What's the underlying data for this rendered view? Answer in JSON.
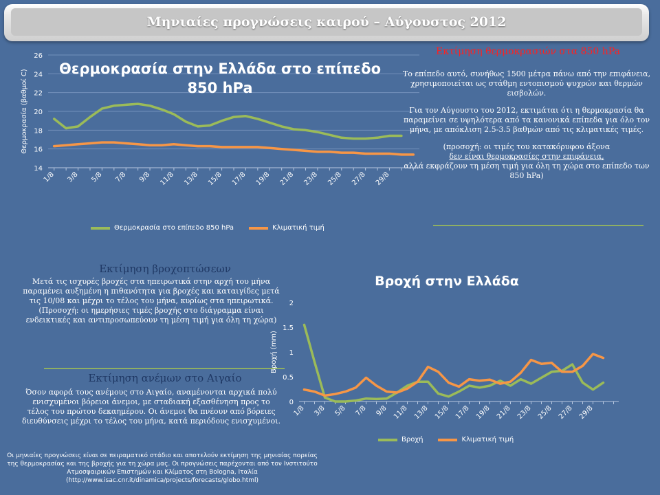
{
  "header": {
    "title": "Μηνιαίες προγνώσεις καιρού – Αύγουστος 2012"
  },
  "temperature_chart": {
    "title_line1": "Θερμοκρασία στην Ελλάδα στο επίπεδο",
    "title_line2": "850 hPa",
    "ylabel": "Θερμοκρασία (βαθμοί C)",
    "legend": [
      "Θερμοκρασία στο επίπεδο 850 hPa",
      "Κλιματική τιμή"
    ],
    "colors": {
      "series1": "#9bbb59",
      "series2": "#f79646"
    }
  },
  "rain_chart": {
    "title": "Βροχή στην Ελλάδα",
    "ylabel": "Βροχή (mm)",
    "legend": [
      "Βροχή",
      "Κλιματική τιμή"
    ]
  },
  "temp_panel": {
    "title": "Εκτίμηση θερμοκρασιών στα 850 hPa",
    "para1": "Το επίπεδο αυτό, συνήθως 1500 μέτρα πάνω από την επιφάνεια, χρησιμοποιείται ως στάθμη εντοπισμού ψυχρών και θερμών εισβολών.",
    "para2": "Για τον Αύγουστο του 2012, εκτιμάται ότι η θερμοκρασία θα παραμείνει σε υψηλότερα από τα κανονικά επίπεδα για όλο τον μήνα, με απόκλιση 2.5-3.5 βαθμών από τις κλιματικές τιμές.",
    "para3_a": "(προσοχή: οι τιμές του κατακόρυφου άξονα",
    "para3_u": "δεν είναι θερμοκρασίες στην επιφάνεια,",
    "para3_b": "αλλά εκφράζουν τη μέση τιμή για όλη τη χώρα στο επίπεδο των 850 hPa)"
  },
  "rain_panel": {
    "title": "Εκτίμηση βροχοπτώσεων",
    "text1": "Μετά τις ισχυρές βροχές στα ηπειρωτικά στην αρχή του μήνα παραμένει αυξημένη η πιθανότητα για βροχές και καταιγίδες μετά τις 10/08 και μέχρι το τέλος του μήνα, κυρίως στα ηπειρωτικά.",
    "text2": "(Προσοχή: οι ημερήσιες τιμές βροχής στο διάγραμμα είναι ενδεικτικές και αντιπροσωπεύουν τη μέση τιμή για όλη τη χώρα)"
  },
  "wind_panel": {
    "title": "Εκτίμηση ανέμων στο Αιγαίο",
    "text": "Όσον αφορά τους ανέμους στο Αιγαίο, αναμένονται αρχικά πολύ ενισχυμένοι βόρειοι άνεμοι, με σταδιακή εξασθένηση προς το τέλος του πρώτου δεκαημέρου. Οι άνεμοι θα πνέουν από βόρειες διευθύνσεις μέχρι το τέλος του μήνα, κατά περιόδους ενισχυμένοι."
  },
  "footnote": "Οι μηνιαίες προγνώσεις είναι σε πειραματικό στάδιο και αποτελούν εκτίμηση της μηνιαίας πορείας της θερμοκρασίας και της βροχής για τη χώρα μας. Οι προγνώσεις παρέχονται από τον Ινστιτούτο Ατμοσφαιρικών Επιστημών και Κλίματος στη Bologna, Ιταλία (http://www.isac.cnr.it/dinamica/projects/forecasts/globo.html)",
  "chart_data": [
    {
      "type": "line",
      "title": "Θερμοκρασία στην Ελλάδα στο επίπεδο 850 hPa",
      "ylabel": "Θερμοκρασία (βαθμοί C)",
      "ylim": [
        14,
        26
      ],
      "yticks": [
        14,
        16,
        18,
        20,
        22,
        24,
        26
      ],
      "x": [
        "1/8",
        "2/8",
        "3/8",
        "4/8",
        "5/8",
        "6/8",
        "7/8",
        "8/8",
        "9/8",
        "10/8",
        "11/8",
        "12/8",
        "13/8",
        "14/8",
        "15/8",
        "16/8",
        "17/8",
        "18/8",
        "19/8",
        "20/8",
        "21/8",
        "22/8",
        "23/8",
        "24/8",
        "25/8",
        "26/8",
        "27/8",
        "28/8",
        "29/8",
        "30/8",
        "31/8"
      ],
      "xtick_labels": [
        "1/8",
        "3/8",
        "5/8",
        "7/8",
        "9/8",
        "11/8",
        "13/8",
        "15/8",
        "17/8",
        "19/8",
        "21/8",
        "23/8",
        "25/8",
        "27/8",
        "29/8"
      ],
      "grid": true,
      "legend_position": "bottom",
      "series": [
        {
          "name": "Θερμοκρασία στο επίπεδο 850 hPa",
          "values": [
            19.2,
            18.2,
            18.4,
            19.4,
            20.3,
            20.6,
            20.7,
            20.8,
            20.6,
            20.2,
            19.7,
            18.9,
            18.4,
            18.5,
            19.0,
            19.4,
            19.5,
            19.2,
            18.8,
            18.4,
            18.1,
            18.0,
            17.8,
            17.5,
            17.2,
            17.1,
            17.1,
            17.2,
            17.4,
            17.4,
            null
          ]
        },
        {
          "name": "Κλιματική τιμή",
          "values": [
            16.3,
            16.4,
            16.5,
            16.6,
            16.7,
            16.7,
            16.6,
            16.5,
            16.4,
            16.4,
            16.5,
            16.4,
            16.3,
            16.3,
            16.2,
            16.2,
            16.2,
            16.2,
            16.1,
            16.0,
            15.9,
            15.8,
            15.7,
            15.7,
            15.6,
            15.6,
            15.5,
            15.5,
            15.5,
            15.4,
            15.4
          ]
        }
      ]
    },
    {
      "type": "line",
      "title": "Βροχή στην Ελλάδα",
      "ylabel": "Βροχή (mm)",
      "ylim": [
        0,
        2
      ],
      "yticks": [
        0,
        0.5,
        1,
        1.5,
        2
      ],
      "x": [
        "1/8",
        "2/8",
        "3/8",
        "4/8",
        "5/8",
        "6/8",
        "7/8",
        "8/8",
        "9/8",
        "10/8",
        "11/8",
        "12/8",
        "13/8",
        "14/8",
        "15/8",
        "16/8",
        "17/8",
        "18/8",
        "19/8",
        "20/8",
        "21/8",
        "22/8",
        "23/8",
        "24/8",
        "25/8",
        "26/8",
        "27/8",
        "28/8",
        "29/8",
        "30/8",
        "31/8"
      ],
      "xtick_labels": [
        "1/8",
        "3/8",
        "5/8",
        "7/8",
        "9/8",
        "11/8",
        "13/8",
        "15/8",
        "17/8",
        "19/8",
        "21/8",
        "23/8",
        "25/8",
        "27/8",
        "29/8"
      ],
      "grid": false,
      "legend_position": "bottom",
      "series": [
        {
          "name": "Βροχή",
          "values": [
            1.55,
            0.8,
            0.08,
            0.0,
            0.0,
            0.02,
            0.06,
            0.05,
            0.06,
            0.18,
            0.32,
            0.4,
            0.4,
            0.16,
            0.1,
            0.2,
            0.32,
            0.28,
            0.32,
            0.42,
            0.32,
            0.45,
            0.36,
            0.48,
            0.6,
            0.62,
            0.75,
            0.38,
            0.24,
            0.38,
            null
          ]
        },
        {
          "name": "Κλιματική τιμή",
          "values": [
            0.24,
            0.2,
            0.12,
            0.15,
            0.2,
            0.28,
            0.48,
            0.32,
            0.2,
            0.18,
            0.26,
            0.4,
            0.7,
            0.6,
            0.38,
            0.3,
            0.45,
            0.42,
            0.44,
            0.36,
            0.4,
            0.58,
            0.84,
            0.76,
            0.78,
            0.6,
            0.6,
            0.72,
            0.96,
            0.88,
            null
          ]
        }
      ]
    }
  ]
}
